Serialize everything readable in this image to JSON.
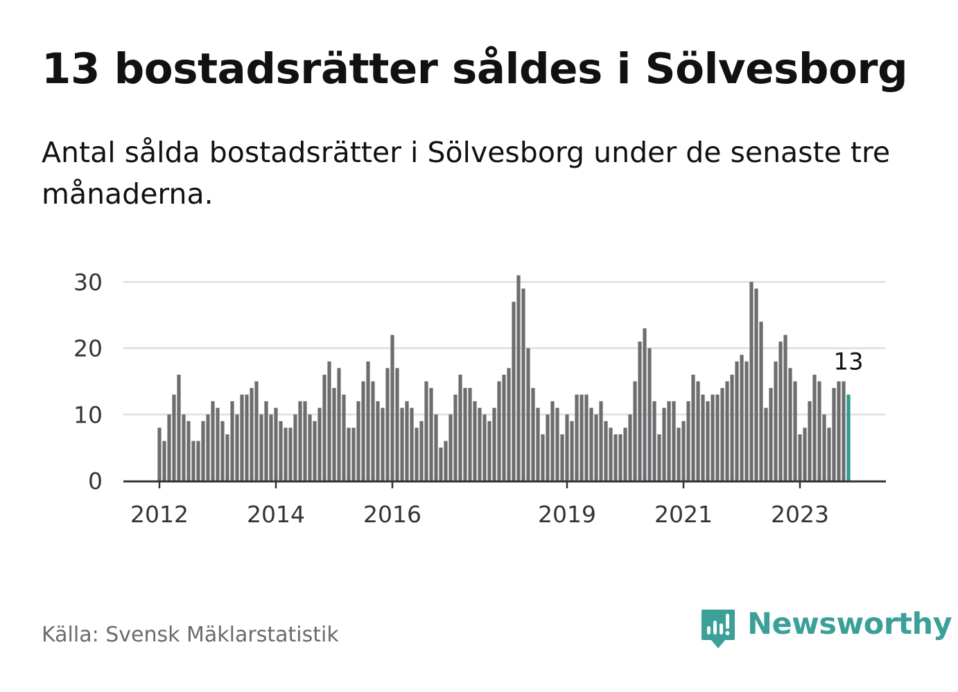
{
  "title": "13 bostadsrätter såldes i Sölvesborg",
  "subtitle": "Antal sålda bostadsrätter i Sölvesborg under de senaste tre månaderna.",
  "source": "Källa: Svensk Mäklarstatistik",
  "brand": {
    "name": "Newsworthy",
    "icon": "newsworthy-logo-icon",
    "color": "#3aa098"
  },
  "chart_data": {
    "type": "bar",
    "title": "13 bostadsrätter såldes i Sölvesborg",
    "subtitle": "Antal sålda bostadsrätter i Sölvesborg under de senaste tre månaderna.",
    "xlabel": "",
    "ylabel": "",
    "ylim": [
      0,
      30
    ],
    "yticks": [
      0,
      10,
      20,
      30
    ],
    "grid": true,
    "bar_color": "#6d6c6e",
    "highlight_color": "#2a9d8f",
    "x_start": "2012-01",
    "x_frequency": "monthly",
    "x_tick_labels": [
      {
        "label": "2012",
        "date": "2012-01"
      },
      {
        "label": "2014",
        "date": "2014-01"
      },
      {
        "label": "2016",
        "date": "2016-01"
      },
      {
        "label": "2019",
        "date": "2019-01"
      },
      {
        "label": "2021",
        "date": "2021-01"
      },
      {
        "label": "2023",
        "date": "2023-01"
      }
    ],
    "values": [
      8,
      6,
      10,
      13,
      16,
      10,
      9,
      6,
      6,
      9,
      10,
      12,
      11,
      9,
      7,
      12,
      10,
      13,
      13,
      14,
      15,
      10,
      12,
      10,
      11,
      9,
      8,
      8,
      10,
      12,
      12,
      10,
      9,
      11,
      16,
      18,
      14,
      17,
      13,
      8,
      8,
      12,
      15,
      18,
      15,
      12,
      11,
      17,
      22,
      17,
      11,
      12,
      11,
      8,
      9,
      15,
      14,
      10,
      5,
      6,
      10,
      13,
      16,
      14,
      14,
      12,
      11,
      10,
      9,
      11,
      15,
      16,
      17,
      27,
      31,
      29,
      20,
      14,
      11,
      7,
      10,
      12,
      11,
      7,
      10,
      9,
      13,
      13,
      13,
      11,
      10,
      12,
      9,
      8,
      7,
      7,
      8,
      10,
      15,
      21,
      23,
      20,
      12,
      7,
      11,
      12,
      12,
      8,
      9,
      12,
      16,
      15,
      13,
      12,
      13,
      13,
      14,
      15,
      16,
      18,
      19,
      18,
      30,
      29,
      24,
      11,
      14,
      18,
      21,
      22,
      17,
      15,
      7,
      8,
      12,
      16,
      15,
      10,
      8,
      14,
      15,
      15,
      13
    ],
    "highlight_index": 142,
    "annotation": {
      "index": 142,
      "text": "13"
    }
  }
}
